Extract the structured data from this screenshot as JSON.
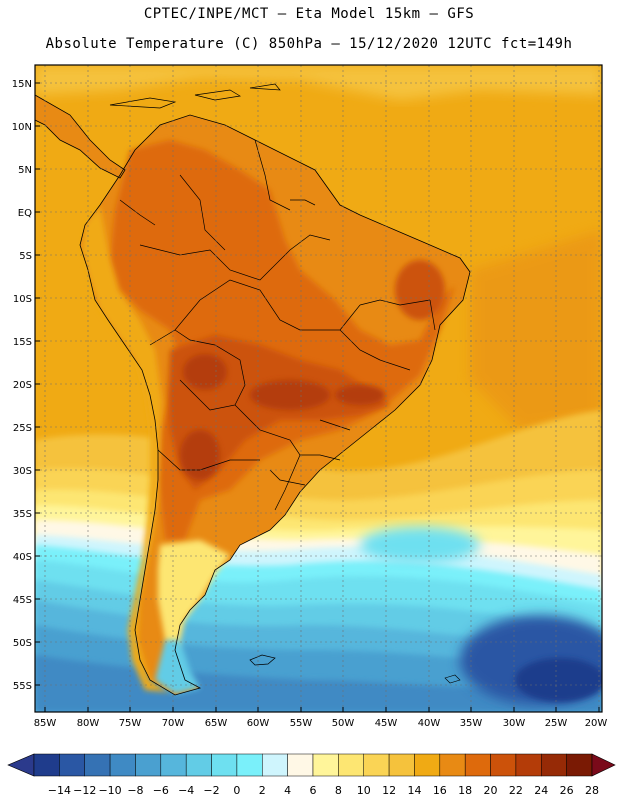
{
  "header": {
    "line1": "CPTEC/INPE/MCT –  Eta Model 15km – GFS",
    "line2": "Absolute Temperature (C) 850hPa – 15/12/2020 12UTC fct=149h"
  },
  "axes": {
    "lat_labels": [
      "15N",
      "10N",
      "5N",
      "EQ",
      "5S",
      "10S",
      "15S",
      "20S",
      "25S",
      "30S",
      "35S",
      "40S",
      "45S",
      "50S",
      "55S"
    ],
    "lon_labels": [
      "85W",
      "80W",
      "75W",
      "70W",
      "65W",
      "60W",
      "55W",
      "50W",
      "45W",
      "40W",
      "35W",
      "30W",
      "25W",
      "20W"
    ]
  },
  "colorbar": {
    "labels": [
      "-14",
      "-12",
      "-10",
      "-8",
      "-6",
      "-4",
      "-2",
      "0",
      "2",
      "4",
      "6",
      "8",
      "10",
      "12",
      "14",
      "16",
      "18",
      "20",
      "22",
      "24",
      "26",
      "28"
    ],
    "colors": [
      "#1f3c8c",
      "#2a57a4",
      "#3572b4",
      "#3f8ac4",
      "#4aa0d0",
      "#56b6dc",
      "#62cce6",
      "#6ee0f0",
      "#7af0fa",
      "#cff5fd",
      "#fff8e6",
      "#fff59a",
      "#fde672",
      "#fad455",
      "#f5c23c",
      "#f0aa14",
      "#e88a14",
      "#de6a0c",
      "#cc520a",
      "#b43c08",
      "#962a06",
      "#7a1a04"
    ],
    "under_color": "#2b3a8c",
    "over_color": "#7a0a1a"
  },
  "map_colors": {
    "ocean_warm": "#f0aa14",
    "land_hot": "#cc520a",
    "land_very_hot": "#b43c08",
    "cold_core": "#3572b4",
    "cyan_band": "#6ee0f0"
  }
}
